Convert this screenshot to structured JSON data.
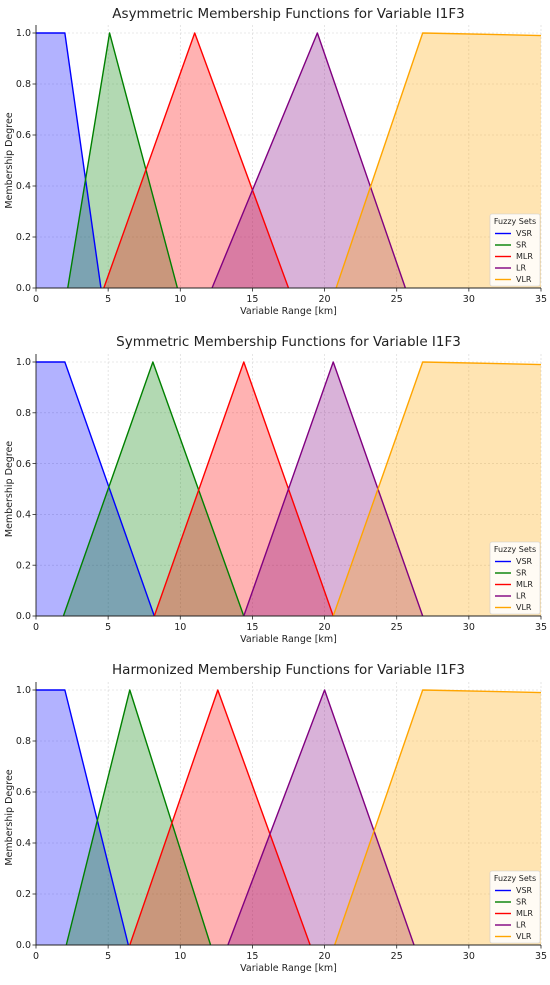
{
  "chart_data": [
    {
      "type": "area",
      "title": "Asymmetric Membership Functions for Variable I1F3",
      "xlabel": "Variable Range [km]",
      "ylabel": "Membership Degree",
      "xlim": [
        0,
        35
      ],
      "ylim": [
        0,
        1
      ],
      "xticks": [
        0,
        5,
        10,
        15,
        20,
        25,
        30,
        35
      ],
      "yticks": [
        0.0,
        0.2,
        0.4,
        0.6,
        0.8,
        1.0
      ],
      "grid": true,
      "legend": {
        "title": "Fuzzy Sets",
        "placement": "bottom-right"
      },
      "series": [
        {
          "name": "VSR",
          "color": "#0000ff",
          "fill": "#aaaaff",
          "x": [
            0,
            2.0,
            4.5
          ],
          "y": [
            1,
            1,
            0
          ]
        },
        {
          "name": "SR",
          "color": "#008000",
          "fill": "#aad4aa",
          "x": [
            2.2,
            5.1,
            9.8
          ],
          "y": [
            0,
            1,
            0
          ]
        },
        {
          "name": "MLR",
          "color": "#ff0000",
          "fill": "#ffaaaa",
          "x": [
            4.7,
            11.0,
            17.5
          ],
          "y": [
            0,
            1,
            0
          ]
        },
        {
          "name": "LR",
          "color": "#800080",
          "fill": "#d4aad4",
          "x": [
            12.2,
            19.5,
            25.6
          ],
          "y": [
            0,
            1,
            0
          ]
        },
        {
          "name": "VLR",
          "color": "#ffa500",
          "fill": "#ffe4b5",
          "x": [
            20.8,
            26.8,
            35
          ],
          "y": [
            0,
            1,
            0.99
          ]
        }
      ]
    },
    {
      "type": "area",
      "title": "Symmetric Membership Functions for Variable I1F3",
      "xlabel": "Variable Range [km]",
      "ylabel": "Membership Degree",
      "xlim": [
        0,
        35
      ],
      "ylim": [
        0,
        1
      ],
      "xticks": [
        0,
        5,
        10,
        15,
        20,
        25,
        30,
        35
      ],
      "yticks": [
        0.0,
        0.2,
        0.4,
        0.6,
        0.8,
        1.0
      ],
      "grid": true,
      "legend": {
        "title": "Fuzzy Sets",
        "placement": "bottom-right"
      },
      "series": [
        {
          "name": "VSR",
          "color": "#0000ff",
          "fill": "#aaaaff",
          "x": [
            0,
            2.0,
            8.2
          ],
          "y": [
            1,
            1,
            0
          ]
        },
        {
          "name": "SR",
          "color": "#008000",
          "fill": "#aad4aa",
          "x": [
            1.9,
            8.1,
            14.4
          ],
          "y": [
            0,
            1,
            0
          ]
        },
        {
          "name": "MLR",
          "color": "#ff0000",
          "fill": "#ffaaaa",
          "x": [
            8.2,
            14.4,
            20.6
          ],
          "y": [
            0,
            1,
            0
          ]
        },
        {
          "name": "LR",
          "color": "#800080",
          "fill": "#d4aad4",
          "x": [
            14.4,
            20.6,
            26.8
          ],
          "y": [
            0,
            1,
            0
          ]
        },
        {
          "name": "VLR",
          "color": "#ffa500",
          "fill": "#ffe4b5",
          "x": [
            20.6,
            26.8,
            35
          ],
          "y": [
            0,
            1,
            0.99
          ]
        }
      ]
    },
    {
      "type": "area",
      "title": "Harmonized Membership Functions for Variable I1F3",
      "xlabel": "Variable Range [km]",
      "ylabel": "Membership Degree",
      "xlim": [
        0,
        35
      ],
      "ylim": [
        0,
        1
      ],
      "xticks": [
        0,
        5,
        10,
        15,
        20,
        25,
        30,
        35
      ],
      "yticks": [
        0.0,
        0.2,
        0.4,
        0.6,
        0.8,
        1.0
      ],
      "grid": true,
      "legend": {
        "title": "Fuzzy Sets",
        "placement": "bottom-right"
      },
      "series": [
        {
          "name": "VSR",
          "color": "#0000ff",
          "fill": "#aaaaff",
          "x": [
            0,
            2.0,
            6.4
          ],
          "y": [
            1,
            1,
            0
          ]
        },
        {
          "name": "SR",
          "color": "#008000",
          "fill": "#aad4aa",
          "x": [
            2.1,
            6.5,
            12.1
          ],
          "y": [
            0,
            1,
            0
          ]
        },
        {
          "name": "MLR",
          "color": "#ff0000",
          "fill": "#ffaaaa",
          "x": [
            6.5,
            12.6,
            19.0
          ],
          "y": [
            0,
            1,
            0
          ]
        },
        {
          "name": "LR",
          "color": "#800080",
          "fill": "#d4aad4",
          "x": [
            13.3,
            20.0,
            26.2
          ],
          "y": [
            0,
            1,
            0
          ]
        },
        {
          "name": "VLR",
          "color": "#ffa500",
          "fill": "#ffe4b5",
          "x": [
            20.7,
            26.8,
            35
          ],
          "y": [
            0,
            1,
            0.99
          ]
        }
      ]
    }
  ]
}
